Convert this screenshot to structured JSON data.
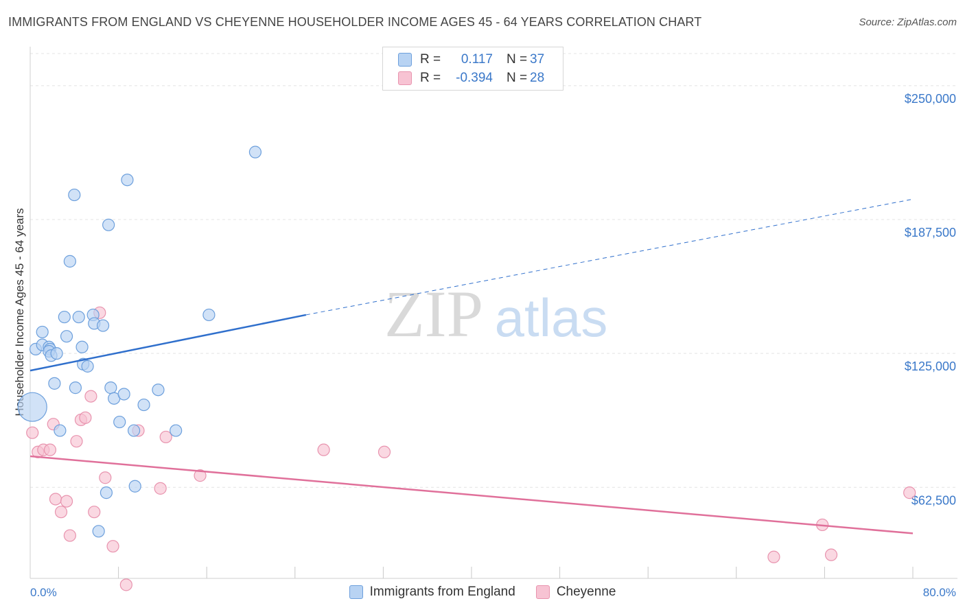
{
  "title": "IMMIGRANTS FROM ENGLAND VS CHEYENNE HOUSEHOLDER INCOME AGES 45 - 64 YEARS CORRELATION CHART",
  "source": "Source: ZipAtlas.com",
  "watermark": {
    "zip": "ZIP",
    "atlas": "atlas"
  },
  "colors": {
    "blue": "#3a78c9",
    "blue_fill": "#b8d3f3",
    "blue_stroke": "#6c9fdc",
    "blue_line": "#2f6fcc",
    "pink": "#e06890",
    "pink_fill": "#f7c3d3",
    "pink_stroke": "#e893ae",
    "pink_line": "#e0709a"
  },
  "legend": {
    "rows": [
      {
        "r_label": "R =",
        "r_value": "0.117",
        "n_label": "N =",
        "n_value": "37"
      },
      {
        "r_label": "R =",
        "r_value": "-0.394",
        "n_label": "N =",
        "n_value": "28"
      }
    ]
  },
  "bottom_legend": [
    "Immigrants from England",
    "Cheyenne"
  ],
  "chart_data": {
    "type": "scatter",
    "title": "IMMIGRANTS FROM ENGLAND VS CHEYENNE HOUSEHOLDER INCOME AGES 45 - 64 YEARS CORRELATION CHART",
    "xlabel": "",
    "ylabel": "Householder Income Ages 45 - 64 years",
    "xlim": [
      0,
      80
    ],
    "ylim": [
      20000,
      265000
    ],
    "x_tick_labels": [
      "0.0%",
      "80.0%"
    ],
    "y_ticks": [
      62500,
      125000,
      187500,
      250000
    ],
    "y_tick_labels": [
      "$62,500",
      "$125,000",
      "$187,500",
      "$250,000"
    ],
    "grid": true,
    "series": [
      {
        "name": "Immigrants from England",
        "color": "blue",
        "r": 0.117,
        "n": 37,
        "trend": {
          "x0": 0,
          "y0": 117000,
          "x_solid_end": 25,
          "y_solid_end": 143000,
          "x1": 80,
          "y1": 197000
        },
        "points": [
          {
            "x": 0.5,
            "y": 127000
          },
          {
            "x": 1.1,
            "y": 129000
          },
          {
            "x": 1.7,
            "y": 128000
          },
          {
            "x": 1.8,
            "y": 127000
          },
          {
            "x": 1.1,
            "y": 135000
          },
          {
            "x": 1.7,
            "y": 126000
          },
          {
            "x": 1.9,
            "y": 124000
          },
          {
            "x": 2.4,
            "y": 125000
          },
          {
            "x": 2.2,
            "y": 111000
          },
          {
            "x": 2.7,
            "y": 89000
          },
          {
            "x": 3.1,
            "y": 142000
          },
          {
            "x": 3.3,
            "y": 133000
          },
          {
            "x": 3.6,
            "y": 168000
          },
          {
            "x": 4.0,
            "y": 199000
          },
          {
            "x": 4.1,
            "y": 109000
          },
          {
            "x": 4.4,
            "y": 142000
          },
          {
            "x": 4.7,
            "y": 128000
          },
          {
            "x": 4.8,
            "y": 120000
          },
          {
            "x": 5.2,
            "y": 119000
          },
          {
            "x": 5.7,
            "y": 143000
          },
          {
            "x": 5.8,
            "y": 139000
          },
          {
            "x": 6.2,
            "y": 42000
          },
          {
            "x": 6.6,
            "y": 138000
          },
          {
            "x": 6.9,
            "y": 60000
          },
          {
            "x": 7.1,
            "y": 185000
          },
          {
            "x": 7.3,
            "y": 109000
          },
          {
            "x": 7.6,
            "y": 104000
          },
          {
            "x": 8.1,
            "y": 93000
          },
          {
            "x": 8.5,
            "y": 106000
          },
          {
            "x": 8.8,
            "y": 206000
          },
          {
            "x": 9.4,
            "y": 89000
          },
          {
            "x": 9.5,
            "y": 63000
          },
          {
            "x": 10.3,
            "y": 101000
          },
          {
            "x": 11.6,
            "y": 108000
          },
          {
            "x": 13.2,
            "y": 89000
          },
          {
            "x": 16.2,
            "y": 143000
          },
          {
            "x": 20.4,
            "y": 219000
          }
        ],
        "large_point": {
          "x": 0.2,
          "y": 100000
        }
      },
      {
        "name": "Cheyenne",
        "color": "pink",
        "r": -0.394,
        "n": 28,
        "trend": {
          "x0": 0,
          "y0": 77000,
          "x1": 80,
          "y1": 41000
        },
        "points": [
          {
            "x": 0.2,
            "y": 88000
          },
          {
            "x": 0.7,
            "y": 79000
          },
          {
            "x": 1.2,
            "y": 80000
          },
          {
            "x": 1.8,
            "y": 80000
          },
          {
            "x": 2.1,
            "y": 92000
          },
          {
            "x": 2.3,
            "y": 57000
          },
          {
            "x": 2.8,
            "y": 51000
          },
          {
            "x": 3.3,
            "y": 56000
          },
          {
            "x": 3.6,
            "y": 40000
          },
          {
            "x": 4.2,
            "y": 84000
          },
          {
            "x": 4.6,
            "y": 94000
          },
          {
            "x": 5.0,
            "y": 95000
          },
          {
            "x": 5.5,
            "y": 105000
          },
          {
            "x": 5.8,
            "y": 51000
          },
          {
            "x": 6.3,
            "y": 144000
          },
          {
            "x": 6.8,
            "y": 67000
          },
          {
            "x": 7.5,
            "y": 35000
          },
          {
            "x": 8.7,
            "y": 17000
          },
          {
            "x": 9.8,
            "y": 89000
          },
          {
            "x": 11.8,
            "y": 62000
          },
          {
            "x": 12.3,
            "y": 86000
          },
          {
            "x": 15.4,
            "y": 68000
          },
          {
            "x": 26.6,
            "y": 80000
          },
          {
            "x": 32.1,
            "y": 79000
          },
          {
            "x": 67.4,
            "y": 30000
          },
          {
            "x": 71.8,
            "y": 45000
          },
          {
            "x": 72.6,
            "y": 31000
          },
          {
            "x": 79.7,
            "y": 60000
          }
        ]
      }
    ]
  }
}
